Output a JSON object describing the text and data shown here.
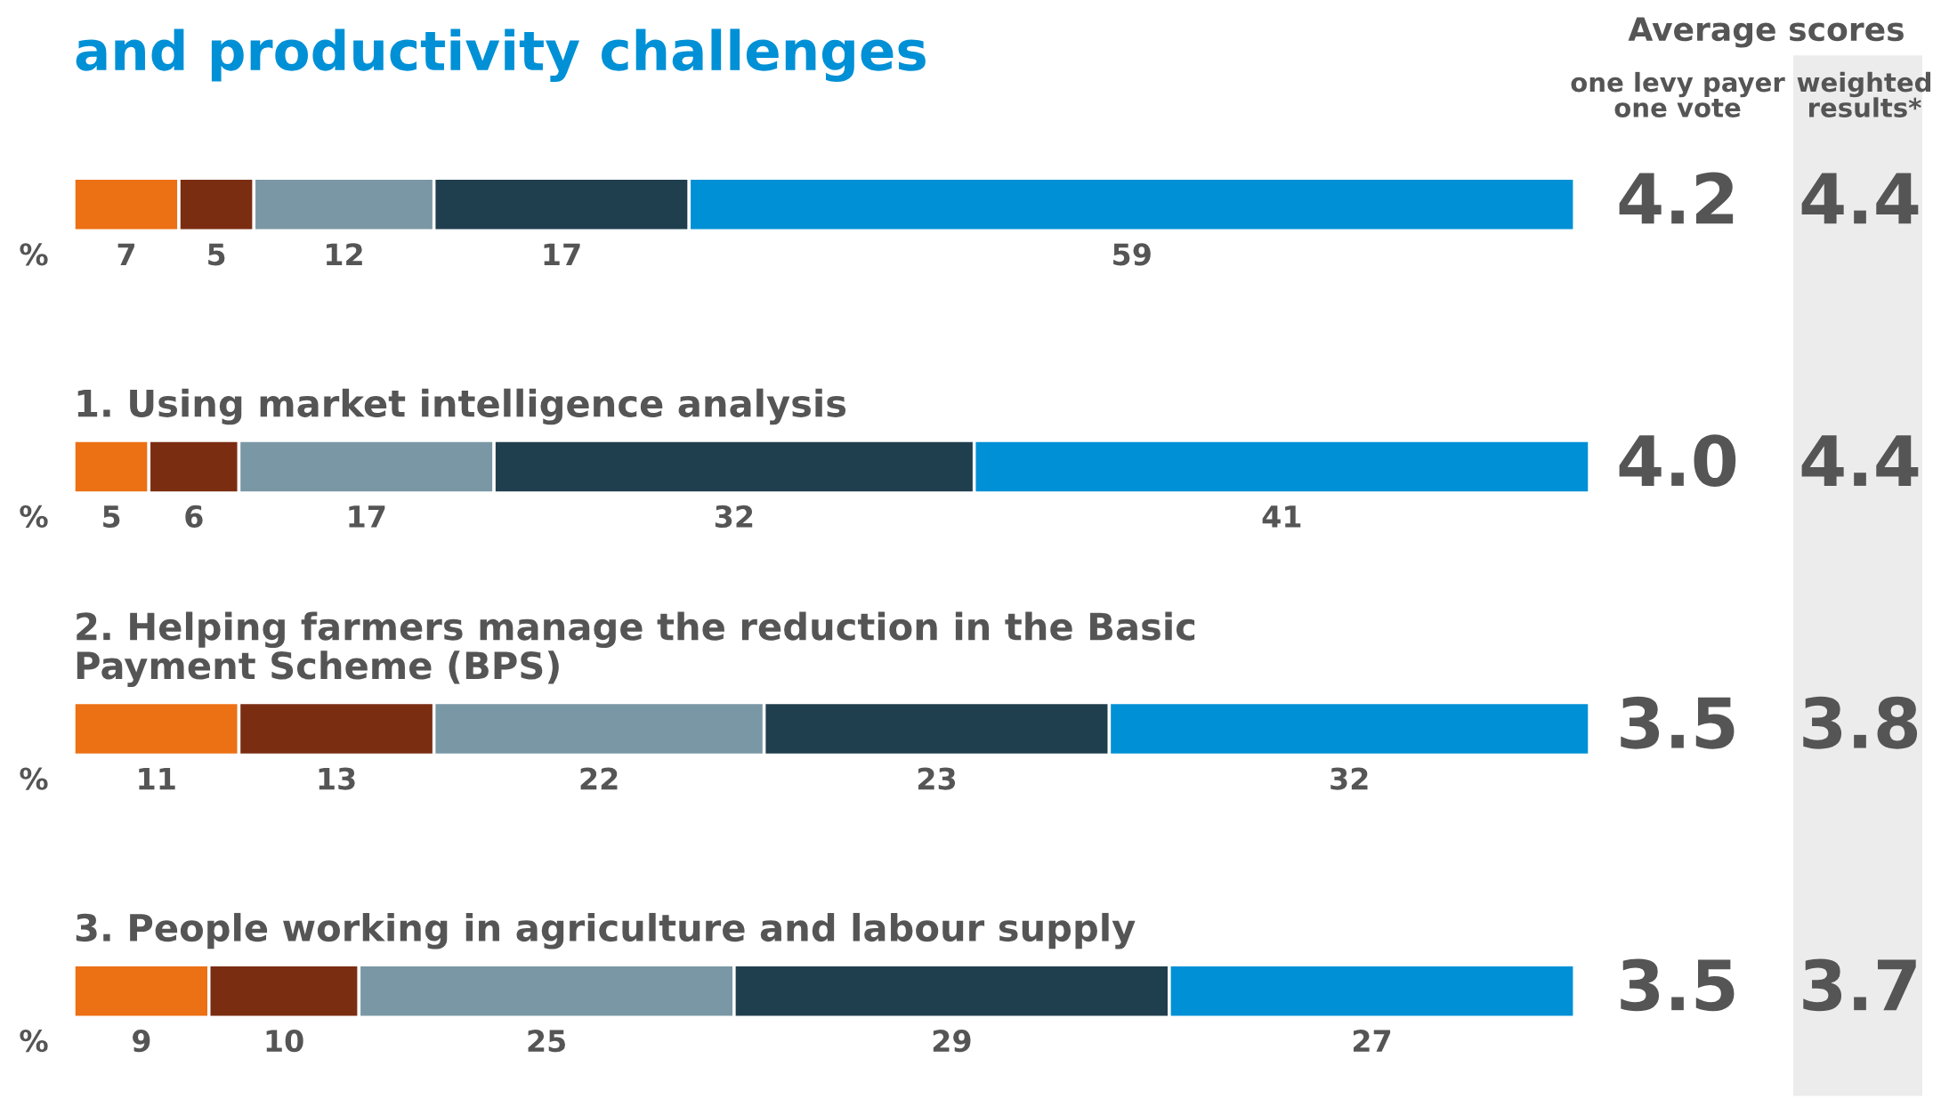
{
  "chart_data": {
    "type": "bar",
    "orientation": "horizontal",
    "stacked": true,
    "data_labels": true,
    "tick_labels": false,
    "legend": false,
    "title": "and productivity challenges",
    "categories": [
      null,
      "1. Using market intelligence analysis",
      "2. Helping farmers manage the reduction in the Basic\nPayment Scheme (BPS)",
      "3. People working in agriculture and labour supply"
    ],
    "series": [
      {
        "color": "#ec7014",
        "values": [
          7,
          5,
          11,
          9
        ]
      },
      {
        "color": "#7b2d12",
        "values": [
          5,
          6,
          13,
          10
        ]
      },
      {
        "color": "#7a97a5",
        "values": [
          12,
          17,
          22,
          25
        ]
      },
      {
        "color": "#203f4e",
        "values": [
          17,
          32,
          23,
          29
        ]
      },
      {
        "color": "#0090d6",
        "values": [
          59,
          41,
          32,
          27
        ]
      }
    ],
    "annotations": [
      "Average scores",
      "one levy payer\none vote",
      "weighted\nresults*",
      "%",
      "4.2",
      "4.4",
      "4.0",
      "4.4",
      "3.5",
      "3.8",
      "3.5",
      "3.7"
    ]
  }
}
